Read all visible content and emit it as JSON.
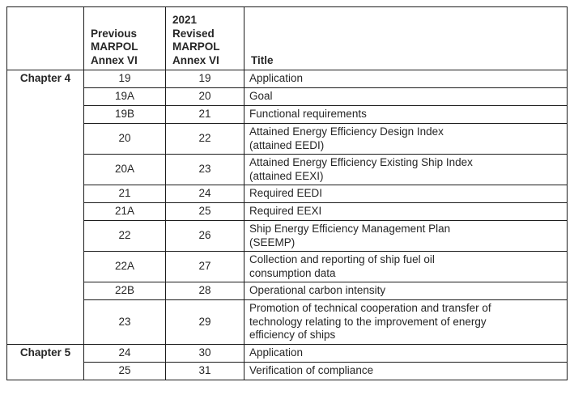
{
  "table": {
    "columns": {
      "chapter_header": "",
      "previous_header": "Previous\nMARPOL\nAnnex VI",
      "revised_header": "2021\nRevised\nMARPOL\nAnnex VI",
      "title_header": "Title"
    },
    "chapters": [
      {
        "label": "Chapter 4",
        "rows": [
          {
            "previous": "19",
            "revised": "19",
            "lines": 1,
            "title": "Application"
          },
          {
            "previous": "19A",
            "revised": "20",
            "lines": 1,
            "title": "Goal"
          },
          {
            "previous": "19B",
            "revised": "21",
            "lines": 1,
            "title": "Functional requirements"
          },
          {
            "previous": "20",
            "revised": "22",
            "lines": 2,
            "title": "Attained Energy Efficiency Design Index\n(attained EEDI)"
          },
          {
            "previous": "20A",
            "revised": "23",
            "lines": 2,
            "title": "Attained Energy Efficiency Existing Ship Index\n(attained EEXI)"
          },
          {
            "previous": "21",
            "revised": "24",
            "lines": 1,
            "title": "Required EEDI"
          },
          {
            "previous": "21A",
            "revised": "25",
            "lines": 1,
            "title": "Required EEXI"
          },
          {
            "previous": "22",
            "revised": "26",
            "lines": 2,
            "title": "Ship Energy Efficiency Management Plan\n(SEEMP)"
          },
          {
            "previous": "22A",
            "revised": "27",
            "lines": 2,
            "title": "Collection and reporting of ship fuel oil\nconsumption data"
          },
          {
            "previous": "22B",
            "revised": "28",
            "lines": 1,
            "title": "Operational carbon intensity"
          },
          {
            "previous": "23",
            "revised": "29",
            "lines": 3,
            "title": "Promotion of technical cooperation and transfer of\ntechnology relating to the improvement of energy\nefficiency of ships"
          }
        ]
      },
      {
        "label": "Chapter 5",
        "rows": [
          {
            "previous": "24",
            "revised": "30",
            "lines": 1,
            "title": "Application"
          },
          {
            "previous": "25",
            "revised": "31",
            "lines": 1,
            "title": "Verification of compliance"
          }
        ]
      }
    ],
    "colors": {
      "border": "#1c1c1c",
      "text": "#262626",
      "background": "#ffffff"
    }
  }
}
